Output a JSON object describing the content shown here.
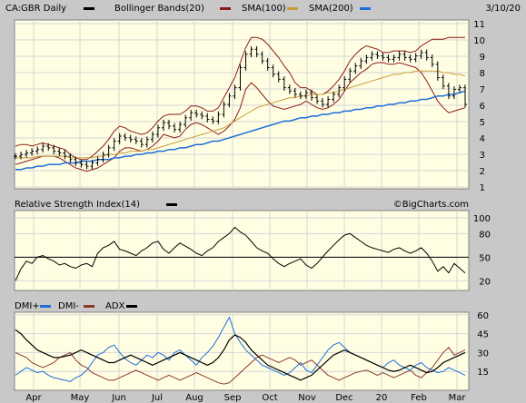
{
  "header": {
    "symbol_label": "CA:GBR Daily",
    "indicators": [
      {
        "label": "Bollinger Bands(20)",
        "color": "#8b1a1a"
      },
      {
        "label": "SMA(100)",
        "color": "#8b1a1a"
      },
      {
        "label": "SMA(200)",
        "color": "#1e6fd9"
      }
    ],
    "date": "3/10/20"
  },
  "watermark": "©BigCharts.com",
  "colors": {
    "background": "#c8c8c8",
    "panel": "#fffee3",
    "grid": "#d6d6d6",
    "price": "#000000",
    "bollinger": "#8b1a1a",
    "sma100": "#c89b3c",
    "sma200": "#1e6fd9",
    "rsi": "#000000",
    "dmi_plus": "#1e6fd9",
    "dmi_minus": "#8b3a2a",
    "adx": "#000000"
  },
  "chart_data": [
    {
      "type": "line",
      "title": "CA:GBR Daily",
      "note": "OHLC price bars with Bollinger Bands(20), SMA(100), SMA(200)",
      "x_labels": [
        "Apr",
        "May",
        "Jun",
        "Jul",
        "Aug",
        "Sep",
        "Oct",
        "Nov",
        "Dec",
        "20",
        "Feb",
        "Mar"
      ],
      "y_ticks": [
        1,
        2,
        3,
        4,
        5,
        6,
        7,
        8,
        9,
        10,
        11
      ],
      "ylim": [
        1,
        11
      ],
      "series": [
        {
          "name": "Price",
          "values": [
            2.9,
            3.0,
            3.1,
            3.2,
            3.3,
            3.5,
            3.4,
            3.2,
            3.1,
            2.9,
            2.7,
            2.5,
            2.4,
            2.3,
            2.5,
            2.7,
            3.0,
            3.4,
            3.8,
            4.1,
            4.0,
            3.9,
            3.8,
            3.6,
            3.9,
            4.2,
            4.6,
            4.9,
            4.7,
            4.5,
            4.8,
            5.2,
            5.5,
            5.4,
            5.3,
            5.1,
            5.0,
            5.4,
            6.0,
            6.5,
            7.0,
            8.2,
            9.0,
            9.3,
            9.0,
            8.6,
            8.2,
            7.8,
            7.5,
            7.0,
            6.8,
            6.6,
            6.5,
            6.7,
            6.4,
            6.2,
            6.0,
            6.3,
            6.6,
            7.0,
            7.5,
            8.0,
            8.3,
            8.6,
            8.8,
            9.0,
            8.9,
            8.8,
            8.7,
            8.8,
            9.0,
            8.8,
            8.7,
            8.9,
            9.1,
            8.8,
            8.4,
            7.6,
            7.1,
            6.5,
            6.9,
            7.0,
            6.0
          ]
        },
        {
          "name": "Bollinger Upper",
          "values": [
            3.5,
            3.6,
            3.6,
            3.5,
            3.6,
            3.7,
            3.6,
            3.5,
            3.4,
            3.3,
            3.0,
            2.8,
            2.7,
            2.7,
            2.9,
            3.2,
            3.5,
            3.9,
            4.4,
            4.7,
            4.6,
            4.4,
            4.3,
            4.2,
            4.3,
            4.6,
            5.0,
            5.3,
            5.4,
            5.4,
            5.4,
            5.6,
            5.9,
            5.9,
            5.8,
            5.6,
            5.6,
            5.8,
            6.4,
            7.0,
            7.6,
            8.5,
            9.4,
            10.0,
            10.0,
            9.9,
            9.6,
            9.2,
            8.8,
            8.3,
            7.9,
            7.3,
            7.0,
            7.0,
            6.8,
            6.6,
            6.6,
            6.8,
            7.1,
            7.5,
            8.0,
            8.6,
            9.0,
            9.3,
            9.5,
            9.4,
            9.3,
            9.1,
            9.1,
            9.2,
            9.2,
            9.2,
            9.1,
            9.2,
            9.5,
            9.7,
            9.9,
            9.9,
            9.9,
            10.0,
            10.0,
            10.0,
            10.0
          ]
        },
        {
          "name": "Bollinger Lower",
          "values": [
            2.4,
            2.5,
            2.6,
            2.7,
            2.8,
            2.9,
            2.9,
            2.9,
            2.8,
            2.6,
            2.4,
            2.2,
            2.1,
            2.0,
            2.1,
            2.2,
            2.4,
            2.6,
            2.8,
            3.2,
            3.4,
            3.4,
            3.3,
            3.2,
            3.3,
            3.5,
            3.8,
            4.2,
            4.1,
            4.0,
            4.1,
            4.5,
            4.8,
            4.9,
            4.8,
            4.6,
            4.4,
            4.2,
            4.4,
            4.7,
            5.1,
            5.8,
            6.9,
            7.3,
            7.0,
            6.6,
            6.2,
            5.9,
            5.8,
            5.7,
            5.8,
            5.9,
            6.0,
            6.2,
            6.0,
            5.8,
            5.7,
            5.8,
            6.0,
            6.3,
            6.8,
            7.3,
            7.6,
            7.9,
            8.1,
            8.4,
            8.5,
            8.5,
            8.4,
            8.4,
            8.5,
            8.4,
            8.3,
            8.2,
            7.9,
            7.4,
            6.8,
            6.2,
            5.8,
            5.5,
            5.6,
            5.7,
            5.8
          ]
        },
        {
          "name": "SMA(100)",
          "values": [
            2.8,
            2.8,
            2.8,
            2.8,
            2.9,
            2.9,
            2.9,
            2.9,
            2.9,
            2.9,
            2.8,
            2.8,
            2.8,
            2.8,
            2.8,
            2.9,
            2.9,
            3.0,
            3.0,
            3.1,
            3.1,
            3.2,
            3.2,
            3.2,
            3.3,
            3.3,
            3.4,
            3.5,
            3.6,
            3.7,
            3.8,
            3.9,
            4.0,
            4.1,
            4.2,
            4.3,
            4.4,
            4.5,
            4.6,
            4.8,
            5.0,
            5.2,
            5.4,
            5.6,
            5.8,
            5.9,
            6.0,
            6.1,
            6.2,
            6.3,
            6.4,
            6.4,
            6.5,
            6.5,
            6.6,
            6.6,
            6.6,
            6.7,
            6.7,
            6.8,
            6.9,
            7.0,
            7.1,
            7.2,
            7.3,
            7.4,
            7.5,
            7.6,
            7.7,
            7.8,
            7.8,
            7.9,
            7.9,
            8.0,
            8.0,
            8.0,
            8.0,
            8.0,
            7.9,
            7.9,
            7.8,
            7.8,
            7.7
          ]
        },
        {
          "name": "SMA(200)",
          "values": [
            2.1,
            2.1,
            2.2,
            2.2,
            2.3,
            2.3,
            2.4,
            2.4,
            2.4,
            2.5,
            2.5,
            2.5,
            2.6,
            2.6,
            2.6,
            2.7,
            2.7,
            2.7,
            2.8,
            2.8,
            2.9,
            2.9,
            3.0,
            3.0,
            3.1,
            3.1,
            3.2,
            3.2,
            3.3,
            3.3,
            3.4,
            3.4,
            3.5,
            3.6,
            3.6,
            3.7,
            3.8,
            3.8,
            3.9,
            4.0,
            4.1,
            4.2,
            4.3,
            4.4,
            4.5,
            4.6,
            4.7,
            4.8,
            4.9,
            5.0,
            5.0,
            5.1,
            5.2,
            5.2,
            5.3,
            5.3,
            5.4,
            5.4,
            5.5,
            5.5,
            5.6,
            5.6,
            5.7,
            5.7,
            5.8,
            5.8,
            5.9,
            5.9,
            6.0,
            6.0,
            6.1,
            6.1,
            6.2,
            6.2,
            6.3,
            6.3,
            6.4,
            6.5,
            6.5,
            6.6,
            6.6,
            6.7,
            6.8
          ]
        }
      ]
    },
    {
      "type": "line",
      "title": "Relative Strength Index(14)",
      "x_labels": [
        "Apr",
        "May",
        "Jun",
        "Jul",
        "Aug",
        "Sep",
        "Oct",
        "Nov",
        "Dec",
        "20",
        "Feb",
        "Mar"
      ],
      "y_ticks": [
        20,
        50,
        80,
        100
      ],
      "ylim": [
        0,
        100
      ],
      "reference_line": 50,
      "series": [
        {
          "name": "RSI(14)",
          "values": [
            20,
            35,
            45,
            42,
            50,
            52,
            48,
            45,
            40,
            42,
            38,
            36,
            40,
            42,
            38,
            55,
            62,
            65,
            70,
            60,
            58,
            55,
            52,
            58,
            62,
            68,
            70,
            60,
            55,
            62,
            68,
            64,
            60,
            55,
            52,
            58,
            62,
            70,
            75,
            80,
            88,
            82,
            78,
            70,
            62,
            58,
            55,
            48,
            42,
            38,
            42,
            45,
            48,
            40,
            36,
            42,
            50,
            58,
            65,
            72,
            78,
            80,
            75,
            70,
            65,
            62,
            60,
            58,
            56,
            60,
            62,
            58,
            55,
            58,
            62,
            55,
            45,
            32,
            38,
            30,
            42,
            36,
            30
          ]
        }
      ]
    },
    {
      "type": "line",
      "title": "DMI+ DMI- ADX",
      "x_labels": [
        "Apr",
        "May",
        "Jun",
        "Jul",
        "Aug",
        "Sep",
        "Oct",
        "Nov",
        "Dec",
        "20",
        "Feb",
        "Mar"
      ],
      "y_ticks": [
        15,
        30,
        45,
        60
      ],
      "ylim": [
        0,
        62
      ],
      "series": [
        {
          "name": "DMI+",
          "values": [
            12,
            15,
            18,
            16,
            14,
            15,
            12,
            10,
            9,
            8,
            7,
            10,
            12,
            16,
            22,
            28,
            30,
            34,
            36,
            30,
            25,
            22,
            20,
            24,
            28,
            26,
            30,
            28,
            24,
            30,
            32,
            28,
            24,
            20,
            26,
            30,
            35,
            42,
            50,
            58,
            45,
            38,
            32,
            28,
            24,
            20,
            18,
            16,
            14,
            12,
            14,
            18,
            22,
            16,
            14,
            20,
            26,
            32,
            36,
            38,
            34,
            30,
            28,
            26,
            24,
            22,
            20,
            18,
            22,
            24,
            20,
            18,
            16,
            20,
            22,
            18,
            16,
            14,
            15,
            18,
            16,
            14,
            12
          ]
        },
        {
          "name": "DMI-",
          "values": [
            30,
            28,
            26,
            22,
            20,
            18,
            20,
            22,
            26,
            28,
            30,
            24,
            20,
            18,
            14,
            12,
            10,
            8,
            8,
            10,
            12,
            14,
            16,
            14,
            12,
            10,
            8,
            10,
            12,
            10,
            8,
            10,
            12,
            14,
            12,
            10,
            8,
            6,
            5,
            6,
            10,
            14,
            18,
            22,
            26,
            28,
            26,
            24,
            22,
            24,
            26,
            24,
            20,
            22,
            24,
            20,
            16,
            12,
            10,
            8,
            10,
            12,
            14,
            15,
            16,
            14,
            12,
            14,
            12,
            10,
            12,
            14,
            16,
            12,
            10,
            14,
            18,
            24,
            30,
            34,
            28,
            30,
            32
          ]
        },
        {
          "name": "ADX",
          "values": [
            48,
            45,
            40,
            36,
            32,
            30,
            28,
            26,
            26,
            27,
            28,
            30,
            32,
            30,
            28,
            26,
            24,
            22,
            22,
            24,
            26,
            28,
            26,
            24,
            22,
            20,
            22,
            24,
            26,
            28,
            30,
            28,
            26,
            24,
            22,
            20,
            22,
            26,
            32,
            40,
            44,
            42,
            38,
            32,
            28,
            24,
            20,
            18,
            16,
            14,
            12,
            10,
            8,
            10,
            12,
            16,
            20,
            24,
            28,
            30,
            32,
            30,
            28,
            26,
            24,
            22,
            20,
            18,
            16,
            15,
            16,
            18,
            20,
            18,
            16,
            14,
            15,
            18,
            22,
            24,
            26,
            28,
            30
          ]
        }
      ]
    }
  ]
}
